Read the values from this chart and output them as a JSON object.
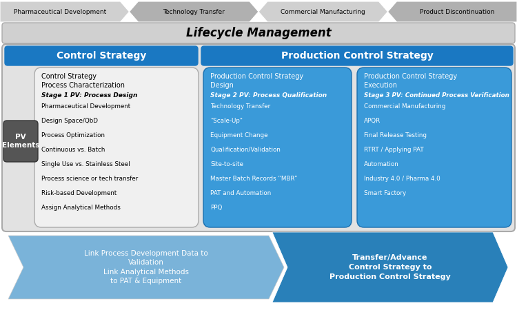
{
  "fig_width": 7.5,
  "fig_height": 4.5,
  "dpi": 100,
  "bg_color": "#ffffff",
  "top_arrow_labels": [
    "Pharmaceutical Development",
    "Technology Transfer",
    "Commercial Manufacturing",
    "Product Discontinuation"
  ],
  "lifecycle_label": "Lifecycle Management",
  "control_strategy_label": "Control Strategy",
  "production_control_label": "Production Control Strategy",
  "box1_title": "Control Strategy\nProcess Characterization",
  "box1_stage": "Stage 1 PV: Process Design",
  "box1_items": [
    "Pharmaceutical Development",
    "Design Space/QbD",
    "Process Optimization",
    "Continuous vs. Batch",
    "Single Use vs. Stainless Steel",
    "Process science or tech transfer",
    "Risk-based Development",
    "Assign Analytical Methods"
  ],
  "box2_title": "Production Control Strategy\nDesign",
  "box2_stage": "Stage 2 PV: Process Qualification",
  "box2_items": [
    "Technology Transfer",
    "\"Scale-Up\"",
    "Equipment Change",
    "Qualification/Validation",
    "Site-to-site",
    "Master Batch Records “MBR”",
    "PAT and Automation",
    "PPQ"
  ],
  "box3_title": "Production Control Strategy\nExecution",
  "box3_stage": "Stage 3 PV: Continued Process Verification",
  "box3_items": [
    "Commercial Manufacturing",
    "APQR",
    "Final Release Testing",
    "RTRT / Applying PAT",
    "Automation",
    "Industry 4.0 / Pharma 4.0",
    "Smart Factory"
  ],
  "pv_label": "PV\nElements",
  "arrow1_line1": "Link Process Development Data to",
  "arrow1_line2": "Validation",
  "arrow1_line3": "Link Analytical Methods",
  "arrow1_line4": "to PAT & Equipment",
  "arrow2_line1": "Transfer/Advance",
  "arrow2_line2": "Control Strategy to",
  "arrow2_line3": "Production Control Strategy",
  "color_chevron_light": "#d0d0d0",
  "color_chevron_dark": "#b0b0b0",
  "color_lifecycle_bg": "#d0d0d0",
  "color_blue_header": "#1a78c2",
  "color_outer_bg": "#e2e2e2",
  "color_box1_bg": "#f0f0f0",
  "color_box2_bg": "#3a9ad9",
  "color_box3_bg": "#3a9ad9",
  "color_pv_bg": "#555555",
  "color_arrow1": "#7ab3d9",
  "color_arrow2": "#2980b9",
  "color_white": "#ffffff",
  "color_black": "#000000"
}
